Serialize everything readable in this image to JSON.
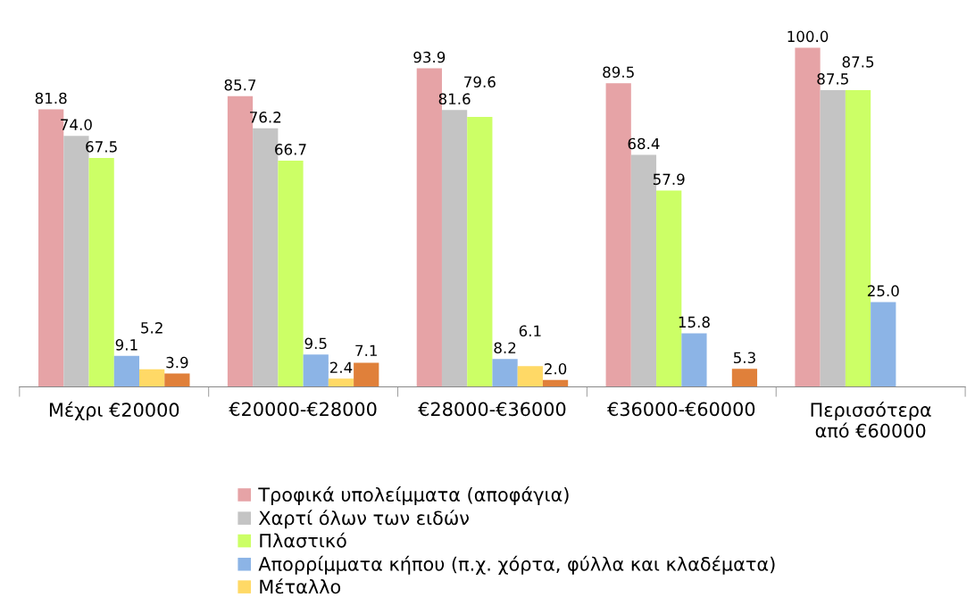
{
  "chart_data": {
    "type": "bar",
    "categories": [
      "Μέχρι €20000",
      "€20000-€28000",
      "€28000-€36000",
      "€36000-€60000",
      "Περισσότερα\nαπό €60000"
    ],
    "series": [
      {
        "name": "Τροφικά υπολείμματα (αποφάγια)",
        "color": "#e6a3a6",
        "values": [
          81.8,
          85.7,
          93.9,
          89.5,
          100.0
        ],
        "value_labels": [
          "81.8",
          "85.7",
          "93.9",
          "89.5",
          "100.0"
        ]
      },
      {
        "name": "Χαρτί όλων των ειδών",
        "color": "#c4c4c4",
        "values": [
          74.0,
          76.2,
          81.6,
          68.4,
          87.5
        ],
        "value_labels": [
          "74.0",
          "76.2",
          "81.6",
          "68.4",
          "87.5"
        ]
      },
      {
        "name": "Πλαστικό",
        "color": "#ccff66",
        "values": [
          67.5,
          66.7,
          79.6,
          57.9,
          87.5
        ],
        "value_labels": [
          "67.5",
          "66.7",
          "79.6",
          "57.9",
          "87.5"
        ]
      },
      {
        "name": "Απορρίμματα κήπου (π.χ. χόρτα, φύλλα και κλαδέματα)",
        "color": "#8cb4e6",
        "values": [
          9.1,
          9.5,
          8.2,
          15.8,
          25.0
        ],
        "value_labels": [
          "9.1",
          "9.5",
          "8.2",
          "15.8",
          "25.0"
        ]
      },
      {
        "name": "Μέταλλο",
        "color": "#ffd966",
        "values": [
          5.2,
          2.4,
          6.1,
          null,
          null
        ],
        "value_labels": [
          "5.2",
          "2.4",
          "6.1",
          null,
          null
        ]
      },
      {
        "color": "#e0803a",
        "values": [
          3.9,
          7.1,
          2.0,
          5.3,
          null
        ],
        "value_labels": [
          "3.9",
          "7.1",
          "2.0",
          "5.3",
          null
        ]
      }
    ],
    "legend": "bottom",
    "grid": false
  }
}
